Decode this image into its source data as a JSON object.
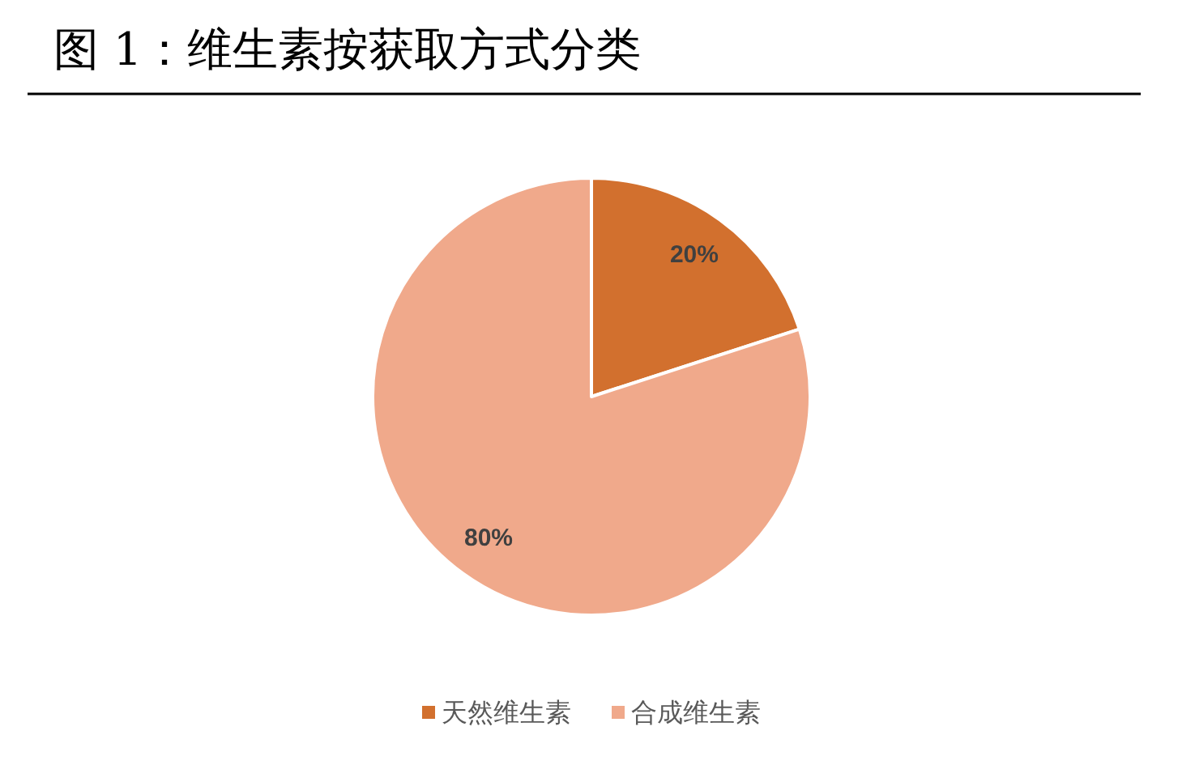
{
  "chart_data": {
    "type": "pie",
    "title": "图 1：维生素按获取方式分类",
    "categories": [
      "天然维生素",
      "合成维生素"
    ],
    "values": [
      20,
      80
    ],
    "colors": [
      "#d2702e",
      "#f0a98b"
    ],
    "value_labels": [
      "20%",
      "80%"
    ],
    "legend": "bottom"
  }
}
